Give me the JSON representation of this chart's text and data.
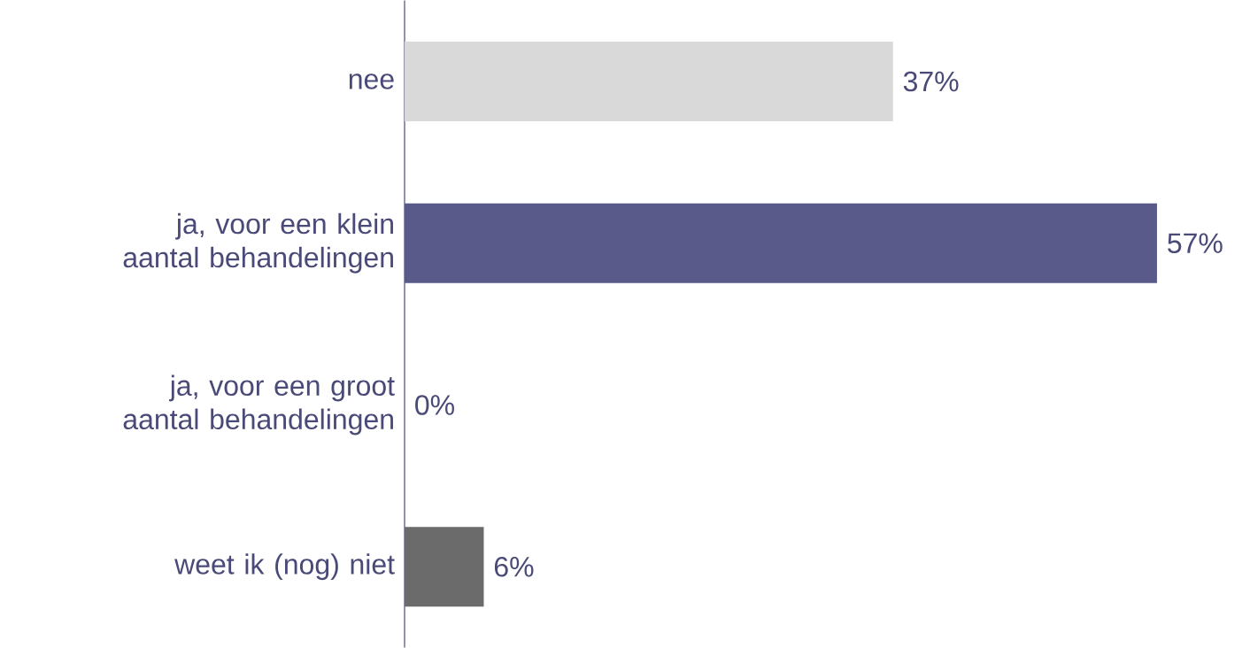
{
  "chart_data": {
    "type": "bar",
    "orientation": "horizontal",
    "categories": [
      "nee",
      "ja, voor een klein aantal behandelingen",
      "ja, voor een groot aantal behandelingen",
      "weet ik (nog) niet"
    ],
    "values": [
      37,
      57,
      0,
      6
    ],
    "colors": [
      "#d9d9d9",
      "#5a5a8a",
      "#5a5a8a",
      "#6b6b6b"
    ],
    "value_labels": [
      "37%",
      "57%",
      "0%",
      "6%"
    ],
    "tick_labels": "y"
  }
}
